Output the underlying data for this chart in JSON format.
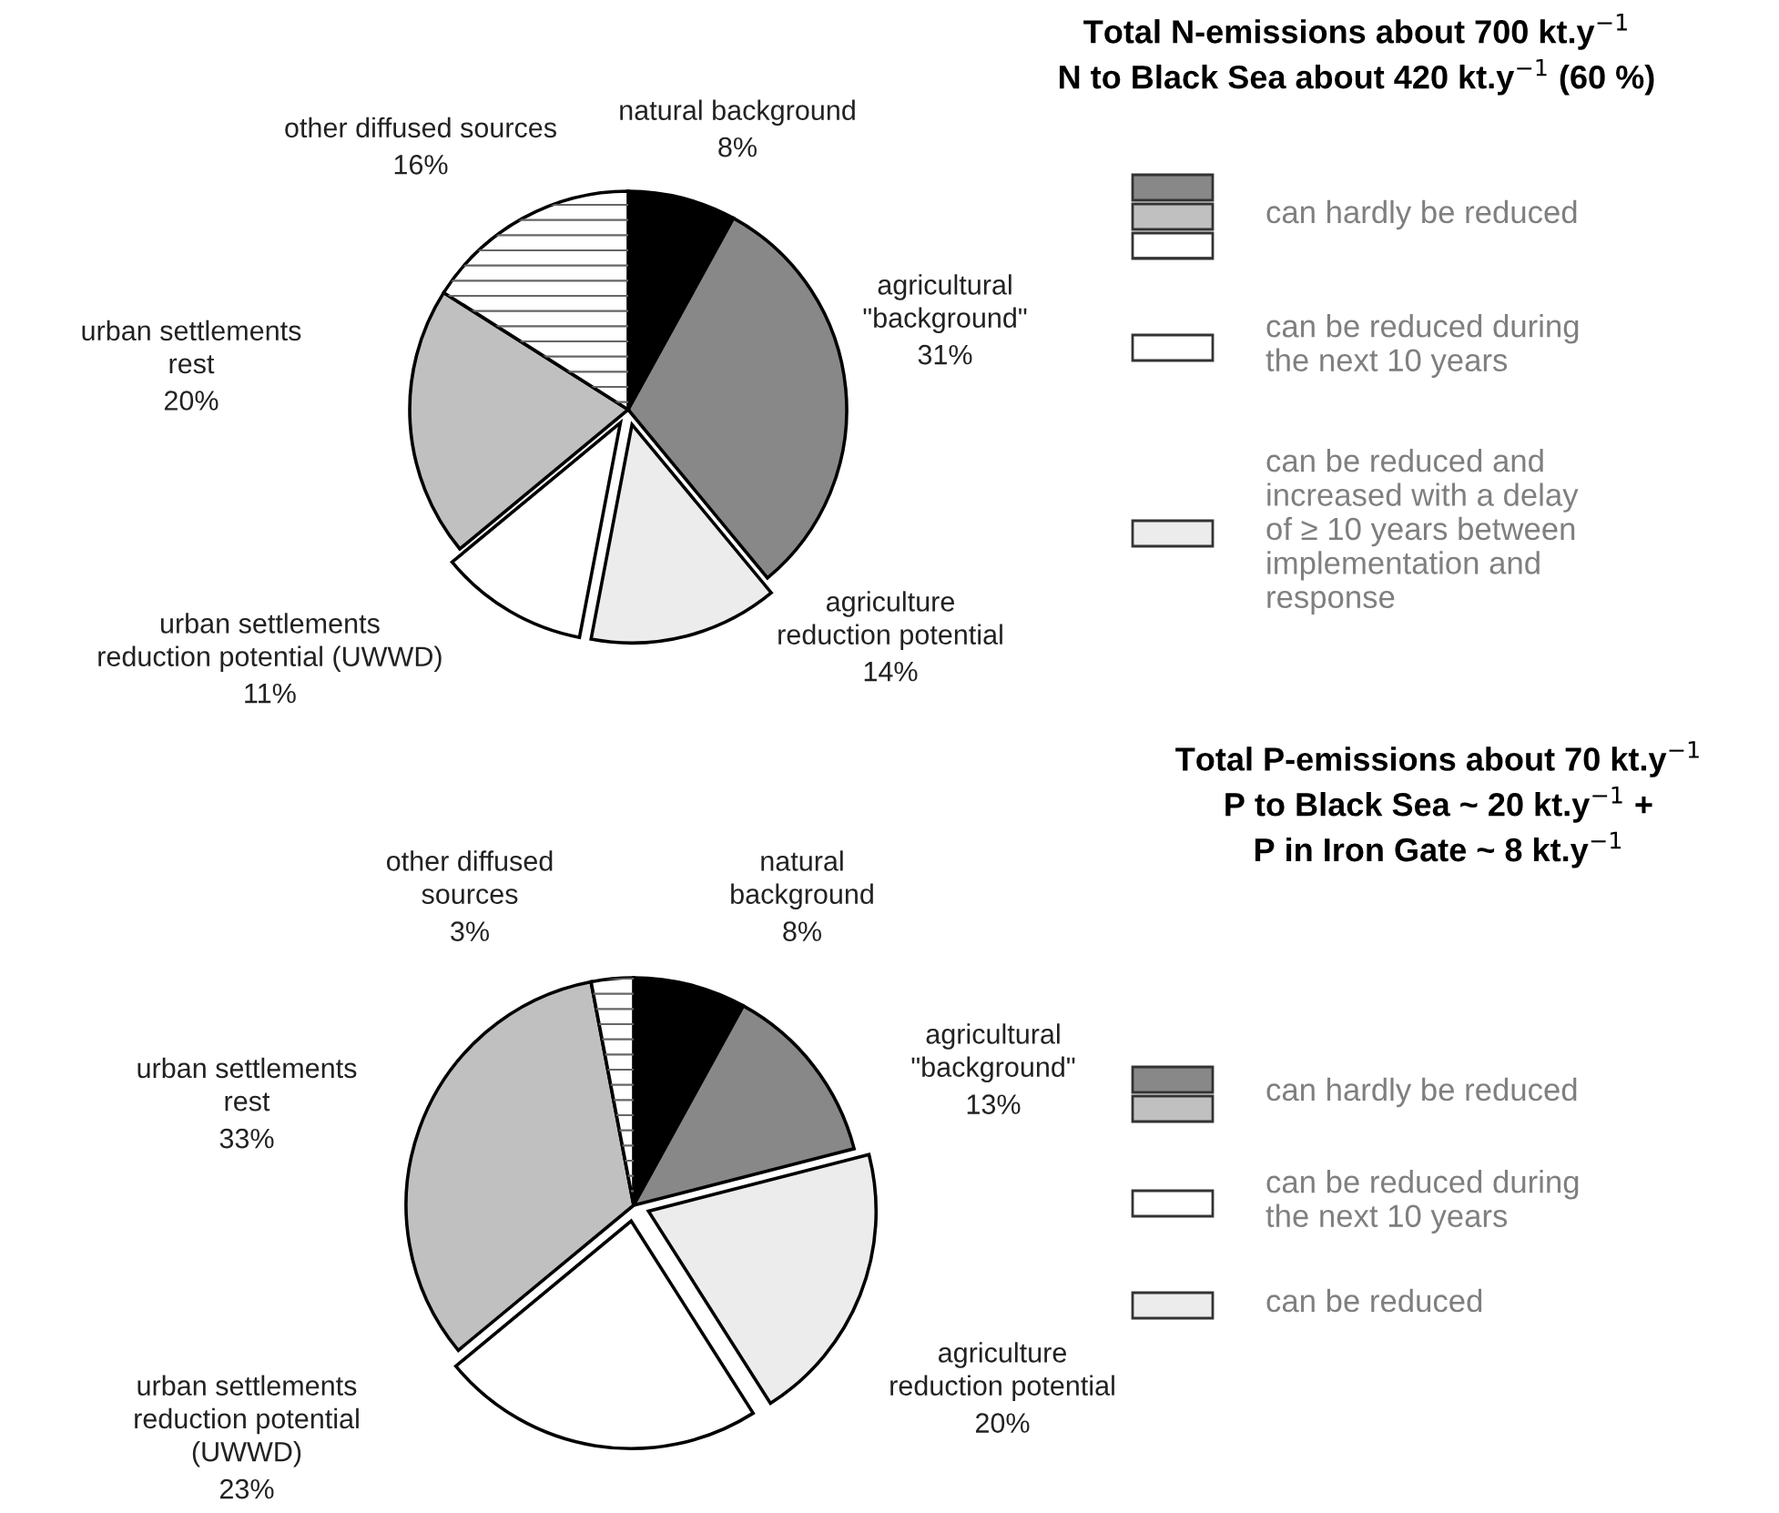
{
  "chart_data": [
    {
      "type": "pie",
      "title": "Total N-emissions about 700 kt.y$^{−1}$\nN to Black Sea about 420 kt.y$^{−1}$ (60 %)",
      "categories": [
        "natural background",
        "agricultural\n\"background\"",
        "agriculture\nreduction potential",
        "urban settlements\nreduction potential (UWWD)",
        "urban settlements\nrest",
        "other diffused sources"
      ],
      "values": [
        8,
        31,
        14,
        11,
        20,
        16
      ],
      "value_labels": [
        "8%",
        "31%",
        "14%",
        "11%",
        "20%",
        "16%"
      ],
      "colors": [
        "#000000",
        "#888888",
        "#ececec",
        "#ffffff",
        "#c0c0c0",
        "#ffffff"
      ],
      "annotations": [
        "can hardly be reduced",
        "can be reduced during\nthe next 10 years",
        "can be reduced and\nincreased with a delay\nof ≥ 10 years between\nimplementation and\nresponse"
      ]
    },
    {
      "type": "pie",
      "title": "Total P-emissions about 70 kt.y$^{−1}$\nP to Black Sea ~ 20 kt.y$^{−1}$ +\nP in Iron Gate ~ 8 kt.y$^{−1}$",
      "categories": [
        "natural\nbackground",
        "agricultural\n\"background\"",
        "agriculture\nreduction potential",
        "urban settlements\nreduction potential\n(UWWD)",
        "urban settlements\nrest",
        "other diffused\nsources"
      ],
      "values": [
        8,
        13,
        20,
        23,
        33,
        3
      ],
      "value_labels": [
        "8%",
        "13%",
        "20%",
        "23%",
        "33%",
        "3%"
      ],
      "colors": [
        "#000000",
        "#888888",
        "#ececec",
        "#ffffff",
        "#c0c0c0",
        "#ffffff"
      ],
      "annotations": [
        "can hardly be reduced",
        "can be reduced during\nthe next 10 years",
        "can be reduced"
      ]
    }
  ]
}
